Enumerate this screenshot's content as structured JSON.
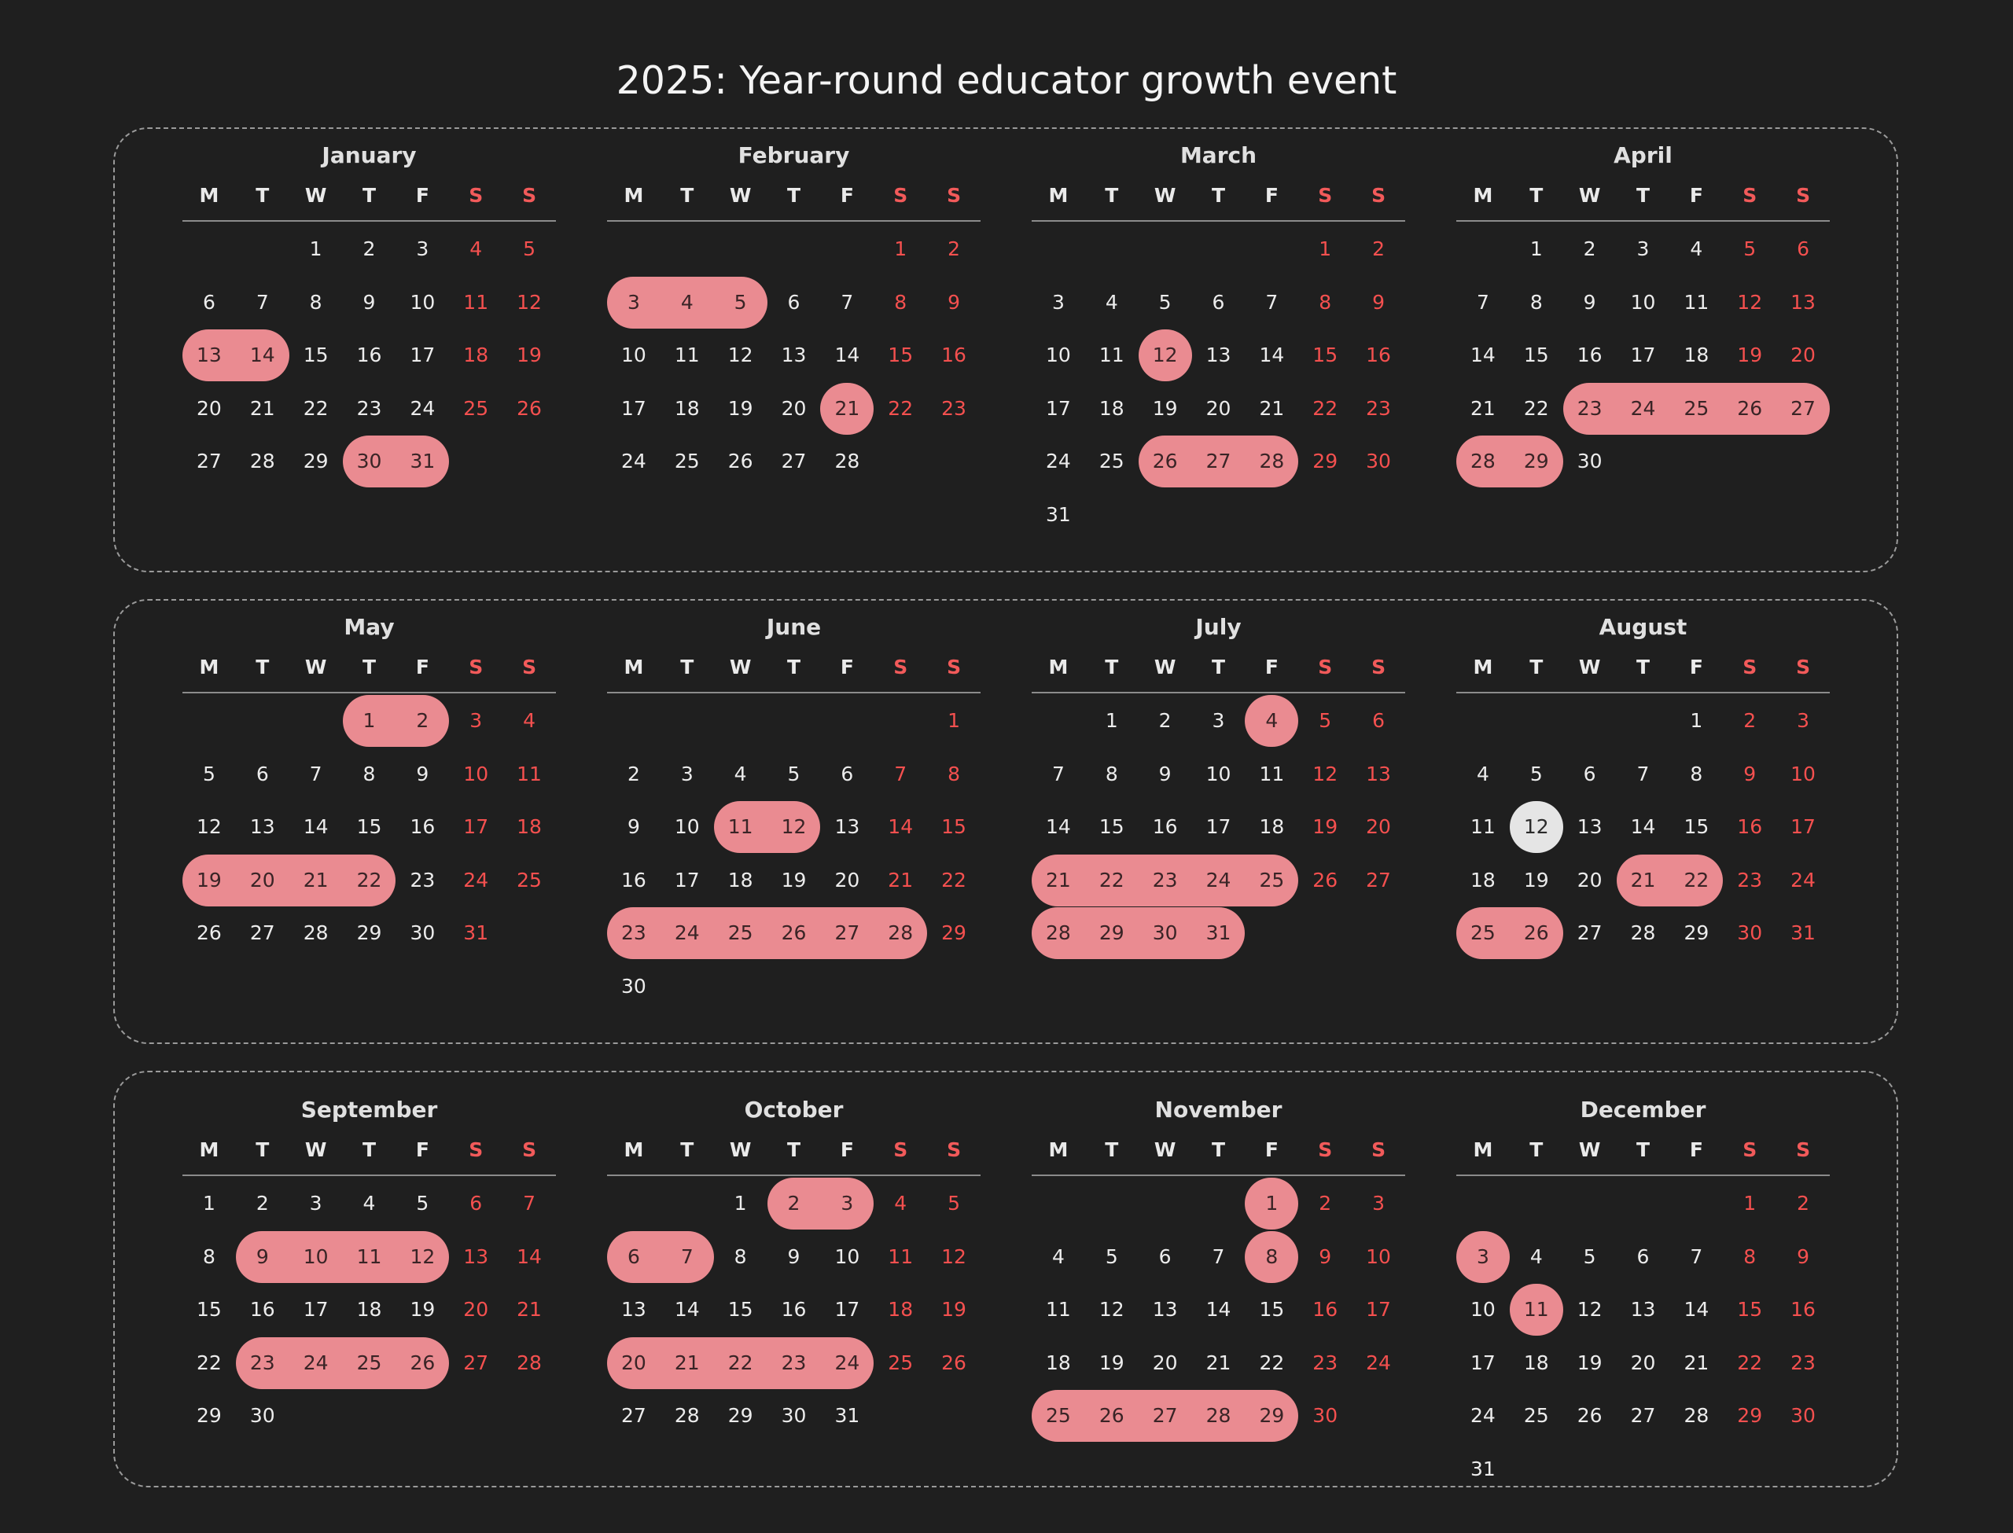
{
  "title": "2025: Year-round educator growth event",
  "weekdays": [
    "M",
    "T",
    "W",
    "T",
    "F",
    "S",
    "S"
  ],
  "colors": {
    "background": "#1f1f1f",
    "highlight": "#ea8b91",
    "today": "#e5e5e5",
    "weekend_text": "#f4504f",
    "day_text": "#ececec",
    "border": "#9a9a9a"
  },
  "months": [
    {
      "name": "January",
      "first_weekday": 2,
      "days": 31,
      "highlights": [
        [
          13,
          14
        ],
        [
          30,
          31
        ]
      ]
    },
    {
      "name": "February",
      "first_weekday": 5,
      "days": 28,
      "highlights": [
        [
          3,
          5
        ],
        [
          21,
          21
        ]
      ]
    },
    {
      "name": "March",
      "first_weekday": 5,
      "days": 31,
      "highlights": [
        [
          12,
          12
        ],
        [
          26,
          28
        ]
      ]
    },
    {
      "name": "April",
      "first_weekday": 1,
      "days": 30,
      "highlights": [
        [
          23,
          27
        ],
        [
          28,
          29
        ]
      ]
    },
    {
      "name": "May",
      "first_weekday": 3,
      "days": 31,
      "highlights": [
        [
          1,
          2
        ],
        [
          19,
          22
        ]
      ]
    },
    {
      "name": "June",
      "first_weekday": 6,
      "days": 30,
      "highlights": [
        [
          11,
          12
        ],
        [
          23,
          28
        ]
      ]
    },
    {
      "name": "July",
      "first_weekday": 1,
      "days": 31,
      "highlights": [
        [
          4,
          4
        ],
        [
          21,
          25
        ],
        [
          28,
          31
        ]
      ]
    },
    {
      "name": "August",
      "first_weekday": 4,
      "days": 31,
      "highlights": [
        [
          21,
          22
        ],
        [
          25,
          26
        ]
      ],
      "today": 12
    },
    {
      "name": "September",
      "first_weekday": 0,
      "days": 30,
      "highlights": [
        [
          9,
          12
        ],
        [
          23,
          26
        ]
      ]
    },
    {
      "name": "October",
      "first_weekday": 2,
      "days": 31,
      "highlights": [
        [
          2,
          3
        ],
        [
          6,
          7
        ],
        [
          20,
          24
        ]
      ]
    },
    {
      "name": "November",
      "first_weekday": 4,
      "days": 30,
      "highlights": [
        [
          1,
          1
        ],
        [
          8,
          8
        ],
        [
          25,
          29
        ]
      ]
    },
    {
      "name": "December",
      "first_weekday": 5,
      "days": 31,
      "highlights": [
        [
          3,
          3
        ],
        [
          11,
          11
        ]
      ]
    }
  ]
}
